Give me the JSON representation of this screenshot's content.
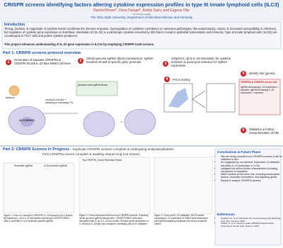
{
  "header": {
    "title": "CRISPR screens identifying factors altering cytokine expression profiles in type III innate lymphoid cells (ILC3)",
    "authors": "Rachel Brown*, Drew Dangel*, Ankita Saini, and Eugene Oltz",
    "note": "*contributed equally",
    "affiliation": "The Ohio State University, Department of Microbial Infection and Immunity"
  },
  "introduction": {
    "heading": "Introduction",
    "text": "Timing, duration, & magnitude of cytokine levels coordinate the immune response. Dysregulation of cytokines contributes to numerous pathologies, like autoimmunity, cancer, & increased susceptibility to infections, but regulation of cytokine gene expression is ill-defined. Interleukin-22 (IL-22) is a pleiotropic cytokine encoded by Il22 that is crucial to epithelial homeostasis and immunity. Type III innate lymphoid cells (ILC3s) are counterparts to Th17 cells and potent cytokine producers.",
    "highlight": "This project enhances understanding of IL-22 gene expression in ILC3s by employing CRISPR-Cas9 screens."
  },
  "part1": {
    "heading": "Part 1: CRISPR screens protocol overview",
    "steps": [
      {
        "number": "1",
        "text": "Generation of separate CRISPRa & CRISPRi dCas9 IL-22 blue MNK3 cell lines"
      },
      {
        "number": "2",
        "text": "Whole-genome sgRNA library transduction: sgRNA localizes dCas9 to specific gene promoter"
      },
      {
        "number": "3",
        "text": "10ng/ml IL-1β & IL-23 stimulation for cytokine induction & puromycin selection for sgRNA expression"
      },
      {
        "number": "4",
        "text": "FACS sorting"
      },
      {
        "number": "5",
        "text": "Identify hits (genes)"
      },
      {
        "number": "6",
        "text": "Validation & further characterization of hits"
      }
    ],
    "labels": {
      "cell": "ILC3 (MNK3)",
      "construct": "construct of dCas9 + activating or repressing TFs",
      "virus": "lentivirus",
      "library": "genome-wide sgRNA library",
      "hit_box": "CRISPRa & CRISPRi screen hits",
      "hit_text": "sgRNA decreasing IL-22 expression = activator; sgRNA increasing IL-22 expression = repressor"
    }
  },
  "part2": {
    "heading": "Part 2: CRISPR Screens in Progress",
    "subheading": "- Duplicate CRISPRi screens complete & undergoing analysis/validation",
    "subheading2": "First CRISPRa screen complete & awaiting sequencing (not shown)",
    "figure1": {
      "panel_a": "Scramble sgRNA",
      "panel_b": "IL22 promoter sgRNA",
      "caption": "Figure 1: Proof of Concept for CRISPRi. IL-22 transcript (A) & protein (B) following IL-1β & IL-23 stimulation with dCas9-CRISPRi MNK3 cells & scramble or IL22 promoter specific sgRNA."
    },
    "figure2": {
      "title": "Top CRISPRi_Crude Residual Genes",
      "caption": "Figure 2: Gene-referenced hits from two CRISPRi screens. Following whole-genome sgRNA transduction, CRISPRi MNK3 cells were stimulated with IL-1β & IL-23 and sorted. Relative guide abundance in IL-22low vs IL-22high was compared, identifying hits to be validated."
    },
    "figure3": {
      "caption": "Figure 3: Gene and IL-22 validation. FACS results comparing IL-22 production in MNK3 cells transduced with sgRNA targeting candidate hits versus scramble control."
    }
  },
  "conclusions": {
    "heading": "Conclusions & Future Plans",
    "items": [
      "Hits are being compiled from CRISPRi screens & will be validated in vitro",
      "As suggested by our screens, expression of validated hits alters IL-22 production in ILC3s",
      "Validated hits will be further characterized, including mechanism of regulation",
      "MNK3 studies to test other hits, including transcription factors, chromatin remodelers, and signaling genes",
      "Repeat & analyze CRISPRa screens"
    ]
  },
  "references": {
    "heading": "References",
    "items": [
      "Dudakov JA, et al. Interleukin-22: immunobiology and pathology. Annu Rev Immunol. 2015.",
      "Shalem O, et al. Genome-scale CRISPR-Cas9 knockout screening in human cells. Science. 2014."
    ]
  }
}
